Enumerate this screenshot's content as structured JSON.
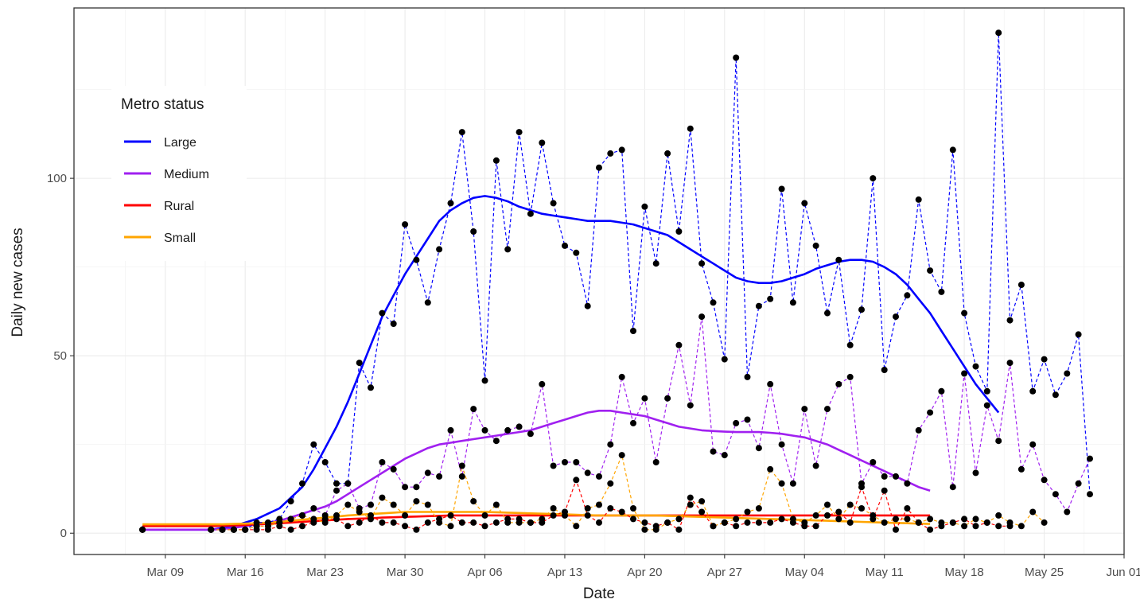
{
  "chart_data": {
    "type": "line",
    "xlabel": "Date",
    "ylabel": "Daily new cases",
    "xlim": [
      "2020-03-01",
      "2020-06-01"
    ],
    "ylim": [
      -6,
      148
    ],
    "x_ticks": [
      {
        "date": "2020-03-09",
        "label": "Mar 09"
      },
      {
        "date": "2020-03-16",
        "label": "Mar 16"
      },
      {
        "date": "2020-03-23",
        "label": "Mar 23"
      },
      {
        "date": "2020-03-30",
        "label": "Mar 30"
      },
      {
        "date": "2020-04-06",
        "label": "Apr 06"
      },
      {
        "date": "2020-04-13",
        "label": "Apr 13"
      },
      {
        "date": "2020-04-20",
        "label": "Apr 20"
      },
      {
        "date": "2020-04-27",
        "label": "Apr 27"
      },
      {
        "date": "2020-05-04",
        "label": "May 04"
      },
      {
        "date": "2020-05-11",
        "label": "May 11"
      },
      {
        "date": "2020-05-18",
        "label": "May 18"
      },
      {
        "date": "2020-05-25",
        "label": "May 25"
      },
      {
        "date": "2020-06-01",
        "label": "Jun 01"
      }
    ],
    "y_ticks": [
      0,
      50,
      100
    ],
    "grid": true,
    "legend": {
      "title": "Metro status",
      "placement": "top-left",
      "entries": [
        {
          "label": "Large",
          "color": "#0000ff"
        },
        {
          "label": "Medium",
          "color": "#a020f0"
        },
        {
          "label": "Rural",
          "color": "#ff0000"
        },
        {
          "label": "Small",
          "color": "#ffa500"
        }
      ]
    },
    "point_color": "#000000",
    "x_start": "2020-03-07",
    "series": [
      {
        "name": "Large",
        "color": "#0000ff",
        "values": [
          1,
          null,
          null,
          null,
          null,
          null,
          1,
          1,
          1,
          1,
          3,
          3,
          4,
          9,
          14,
          25,
          20,
          14,
          14,
          48,
          41,
          62,
          59,
          87,
          77,
          65,
          80,
          93,
          113,
          85,
          43,
          105,
          80,
          113,
          90,
          110,
          93,
          81,
          79,
          64,
          103,
          107,
          108,
          57,
          92,
          76,
          107,
          85,
          114,
          76,
          65,
          49,
          134,
          44,
          64,
          66,
          97,
          65,
          93,
          81,
          62,
          77,
          53,
          63,
          100,
          46,
          61,
          67,
          94,
          74,
          68,
          108,
          62,
          47,
          40,
          141,
          60,
          70,
          40,
          49,
          39,
          45,
          56,
          11
        ],
        "smooth": [
          1,
          1,
          1,
          1,
          1,
          1,
          1,
          1.5,
          2,
          3,
          4,
          5.5,
          7,
          10,
          13,
          18,
          24,
          30,
          37,
          45,
          53,
          61,
          67,
          73,
          78,
          83,
          88,
          91,
          93,
          94.5,
          95,
          94.5,
          93.5,
          92,
          91,
          90,
          89.5,
          89,
          88.5,
          88,
          88,
          88,
          87.5,
          87,
          86,
          85,
          84,
          82,
          80,
          78,
          76,
          74,
          72,
          71,
          70.5,
          70.5,
          71,
          72,
          73,
          74.5,
          75.5,
          76.5,
          77,
          77,
          76.5,
          75,
          73,
          70,
          66,
          62,
          57,
          52,
          47,
          42,
          38,
          34
        ]
      },
      {
        "name": "Medium",
        "color": "#a020f0",
        "values": [
          1,
          null,
          null,
          null,
          null,
          null,
          1,
          1,
          1,
          1,
          2,
          2,
          3,
          4,
          5,
          7,
          5,
          12,
          14,
          7,
          8,
          20,
          18,
          13,
          13,
          17,
          16,
          29,
          16,
          35,
          29,
          26,
          29,
          30,
          28,
          42,
          19,
          20,
          20,
          17,
          16,
          25,
          44,
          31,
          38,
          20,
          38,
          53,
          36,
          61,
          23,
          22,
          31,
          32,
          24,
          42,
          25,
          14,
          35,
          19,
          35,
          42,
          44,
          14,
          20,
          16,
          16,
          14,
          29,
          34,
          40,
          13,
          45,
          17,
          36,
          26,
          48,
          18,
          25,
          15,
          11,
          6,
          14,
          21
        ],
        "smooth": [
          1,
          1,
          1,
          1,
          1,
          1,
          1,
          1.2,
          1.5,
          2,
          2.5,
          3,
          3.5,
          4.5,
          5.5,
          6.5,
          7.5,
          9,
          11,
          13,
          15,
          17,
          19,
          21,
          22.5,
          24,
          25,
          25.5,
          26,
          26.5,
          27,
          27.5,
          28,
          28.5,
          29,
          30,
          31,
          32,
          33,
          34,
          34.5,
          34.5,
          34,
          33.5,
          33,
          32,
          31,
          30,
          29.5,
          29,
          28.8,
          28.6,
          28.5,
          28.5,
          28.5,
          28.3,
          28,
          27.5,
          27,
          26,
          25,
          23.5,
          22,
          20.5,
          19,
          17.5,
          16,
          14.5,
          13,
          12
        ]
      },
      {
        "name": "Rural",
        "color": "#ff0000",
        "values": [
          1,
          null,
          null,
          null,
          null,
          null,
          1,
          1,
          1,
          1,
          1,
          1,
          2,
          1,
          2,
          3,
          4,
          4,
          2,
          3,
          5,
          3,
          3,
          2,
          1,
          3,
          4,
          5,
          3,
          3,
          2,
          3,
          4,
          4,
          3,
          3,
          5,
          6,
          15,
          5,
          3,
          7,
          6,
          4,
          3,
          2,
          3,
          1,
          10,
          6,
          2,
          3,
          2,
          3,
          3,
          3,
          4,
          3,
          2,
          2,
          5,
          6,
          3,
          13,
          4,
          12,
          1,
          7,
          3,
          1,
          2,
          3,
          4,
          2,
          3,
          2,
          2
        ],
        "smooth": [
          2,
          2,
          2,
          2,
          2,
          2,
          2,
          2.1,
          2.2,
          2.3,
          2.5,
          2.6,
          2.8,
          3,
          3.2,
          3.4,
          3.6,
          3.8,
          4,
          4.1,
          4.2,
          4.4,
          4.5,
          4.6,
          4.7,
          4.8,
          4.9,
          5,
          5,
          5,
          5,
          5,
          5,
          5,
          5,
          5,
          5,
          5,
          5,
          5,
          5,
          5,
          5,
          5,
          5,
          5,
          5,
          5,
          5,
          5,
          5,
          5,
          5,
          5,
          5,
          5,
          5,
          5,
          5,
          5,
          5,
          5,
          5,
          5,
          5,
          5,
          5,
          5,
          5,
          5
        ]
      },
      {
        "name": "Small",
        "color": "#ffa500",
        "values": [
          1,
          null,
          null,
          null,
          null,
          null,
          1,
          1,
          1,
          1,
          2,
          2,
          3,
          4,
          5,
          4,
          3,
          5,
          8,
          6,
          4,
          10,
          8,
          5,
          9,
          8,
          3,
          2,
          19,
          9,
          5,
          8,
          3,
          3,
          3,
          4,
          7,
          5,
          2,
          7,
          8,
          14,
          22,
          7,
          1,
          1,
          3,
          4,
          8,
          9,
          2,
          3,
          4,
          6,
          7,
          18,
          14,
          4,
          3,
          5,
          8,
          4,
          8,
          7,
          5,
          3,
          4,
          4,
          3,
          4,
          3,
          3,
          2,
          4,
          3,
          5,
          3,
          2,
          6,
          3
        ],
        "smooth": [
          2.5,
          2.5,
          2.5,
          2.5,
          2.5,
          2.5,
          2.5,
          2.5,
          2.6,
          2.7,
          2.8,
          3,
          3.2,
          3.5,
          3.8,
          4.1,
          4.4,
          4.7,
          5,
          5.2,
          5.4,
          5.6,
          5.8,
          6,
          6,
          6,
          6,
          6,
          6,
          6,
          6,
          5.9,
          5.8,
          5.7,
          5.6,
          5.5,
          5.4,
          5.3,
          5.2,
          5.1,
          5,
          5,
          5,
          5,
          5,
          5,
          4.9,
          4.8,
          4.7,
          4.6,
          4.5,
          4.4,
          4.3,
          4.2,
          4.1,
          4,
          3.9,
          3.8,
          3.7,
          3.6,
          3.5,
          3.4,
          3.3,
          3.2,
          3.1,
          3,
          2.9,
          2.8,
          2.7,
          2.6
        ]
      }
    ]
  }
}
